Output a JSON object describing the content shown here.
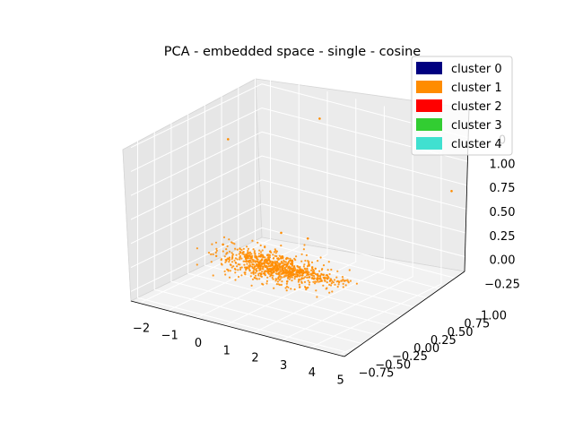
{
  "chart_data": {
    "type": "scatter",
    "title": "PCA - embedded space - single - cosine",
    "xlabel": "",
    "ylabel": "",
    "zlabel": "",
    "x_ticks": [
      "−2",
      "−1",
      "0",
      "1",
      "2",
      "3",
      "4",
      "5"
    ],
    "y_ticks": [
      "−0.75",
      "−0.50",
      "−0.25",
      "0.00",
      "0.25",
      "0.50",
      "0.75",
      "1.00"
    ],
    "z_ticks": [
      "−0.25",
      "0.00",
      "0.25",
      "0.50",
      "0.75",
      "1.00",
      "1.25"
    ],
    "z_top_tick_visible": "0",
    "xlim": [
      -2.3,
      5.2
    ],
    "ylim": [
      -0.85,
      1.1
    ],
    "zlim": [
      -0.35,
      1.35
    ],
    "grid": true,
    "legend_position": "top-right",
    "legend": [
      {
        "label": "cluster 0",
        "color": "#000080"
      },
      {
        "label": "cluster 1",
        "color": "#ff8c00"
      },
      {
        "label": "cluster 2",
        "color": "#ff0000"
      },
      {
        "label": "cluster 3",
        "color": "#32cd32"
      },
      {
        "label": "cluster 4",
        "color": "#40e0d0"
      }
    ],
    "series": [
      {
        "name": "cluster 1",
        "color": "#ff8c00",
        "center": [
          0.7,
          0.0,
          -0.05
        ],
        "spread": [
          0.85,
          0.12,
          0.06
        ],
        "tail_to": [
          3.2,
          0.05,
          0.0
        ],
        "count": 900,
        "outliers": [
          [
            0.2,
            0.9,
            1.15
          ],
          [
            -1.6,
            0.3,
            1.0
          ],
          [
            4.6,
            1.0,
            0.7
          ],
          [
            0.5,
            0.2,
            0.22
          ],
          [
            1.2,
            0.3,
            0.18
          ],
          [
            -0.6,
            -0.2,
            0.15
          ]
        ]
      }
    ]
  }
}
